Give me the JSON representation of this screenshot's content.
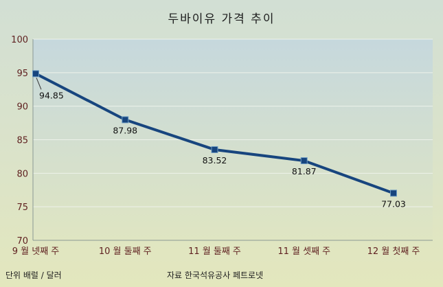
{
  "chart_data": {
    "type": "line",
    "title": "두바이유 가격 추이",
    "categories": [
      "9 월 넷째 주",
      "10 월 둘째 주",
      "11 월 둘째 주",
      "11 월 셋째 주",
      "12 월 첫째 주"
    ],
    "series": [
      {
        "name": "두바이유 가격",
        "values": [
          94.85,
          87.98,
          83.52,
          81.87,
          77.03
        ]
      }
    ],
    "data_labels": [
      "94.85",
      "87.98",
      "83.52",
      "81.87",
      "77.03"
    ],
    "xlabel": "",
    "ylabel": "",
    "ylim": [
      70,
      100
    ],
    "ytick_step": 5,
    "ytick_labels": [
      "70",
      "75",
      "80",
      "85",
      "90",
      "95",
      "100"
    ],
    "grid": "horizontal",
    "legend": "none",
    "marker": "square",
    "line_color": "#17457e",
    "marker_border_color": "#6d9cc4",
    "tick_label_color": "#5e1f1f",
    "data_label_color": "#111111",
    "grid_color": "#eef2ea"
  },
  "footer": {
    "unit_note": "단위 배럴 / 달러",
    "source_note": "자료 한국석유공사 페트로넷"
  }
}
